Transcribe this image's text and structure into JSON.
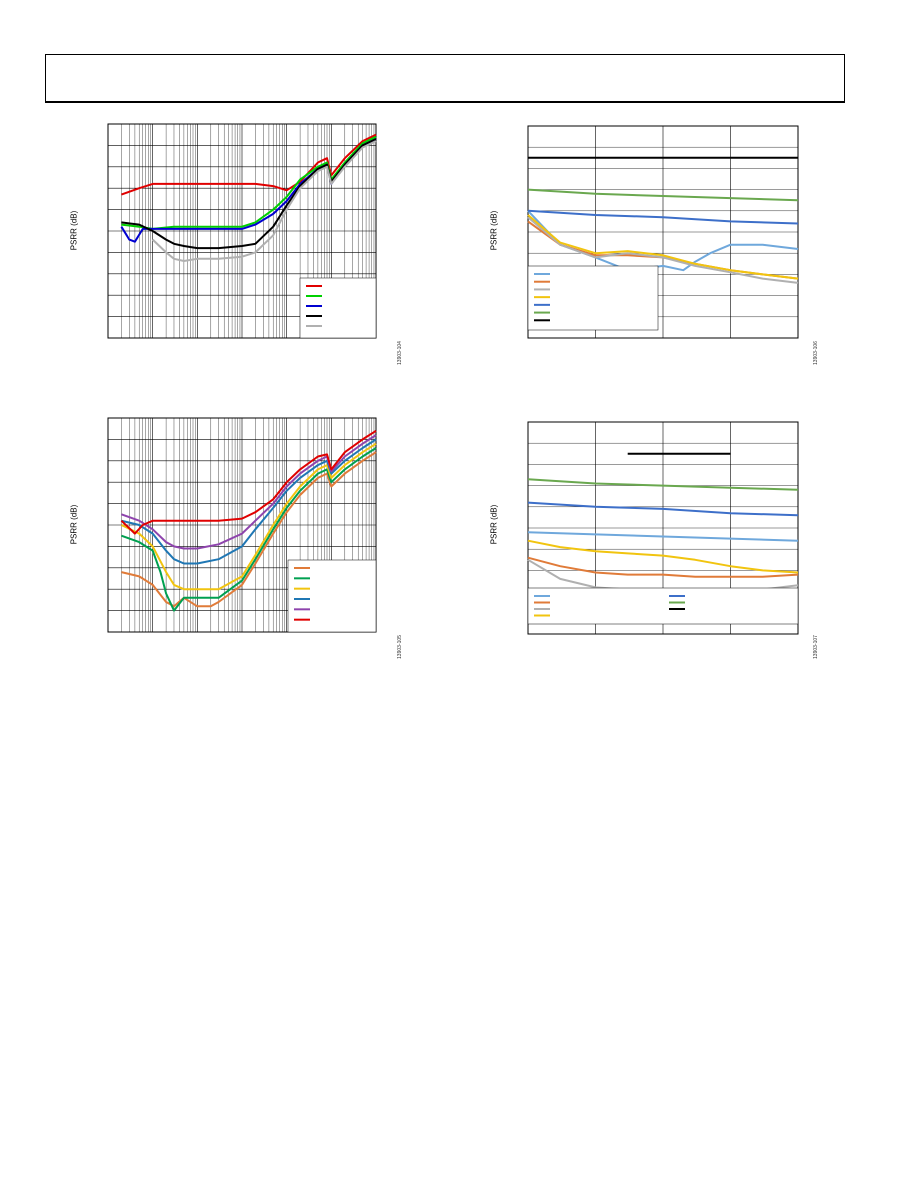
{
  "page": {
    "header_title": ""
  },
  "chart_data": [
    {
      "type": "line",
      "id": "fig1",
      "ylabel": "PSRR (dB)",
      "figure_number": "13903-104",
      "xscale": "log",
      "xlim": [
        10,
        10000000
      ],
      "ylim": [
        0,
        100
      ],
      "grid": true,
      "legend_position": "bottom-right",
      "series": [
        {
          "color": "#e00000",
          "x": [
            20,
            50,
            100,
            300,
            1000,
            3000,
            10000,
            20000,
            50000,
            100000,
            200000,
            500000,
            800000,
            1000000,
            2000000,
            5000000,
            10000000
          ],
          "y": [
            67,
            70,
            72,
            72,
            72,
            72,
            72,
            72,
            71,
            69,
            73,
            82,
            84,
            76,
            84,
            92,
            95
          ]
        },
        {
          "color": "#00d000",
          "x": [
            20,
            50,
            100,
            300,
            1000,
            3000,
            10000,
            20000,
            50000,
            100000,
            200000,
            500000,
            800000,
            1000000,
            2000000,
            5000000,
            10000000
          ],
          "y": [
            53,
            52,
            51,
            52,
            52,
            52,
            52,
            54,
            60,
            66,
            74,
            80,
            82,
            74,
            82,
            91,
            94
          ]
        },
        {
          "color": "#0000d0",
          "x": [
            20,
            30,
            40,
            60,
            100,
            300,
            1000,
            3000,
            10000,
            20000,
            50000,
            100000,
            200000,
            500000,
            800000,
            1000000,
            2000000,
            5000000,
            10000000
          ],
          "y": [
            52,
            46,
            45,
            51,
            51,
            51,
            51,
            51,
            51,
            53,
            58,
            64,
            72,
            79,
            81,
            72,
            81,
            90,
            93
          ]
        },
        {
          "color": "#000000",
          "x": [
            20,
            50,
            100,
            200,
            300,
            500,
            1000,
            3000,
            10000,
            20000,
            50000,
            100000,
            200000,
            500000,
            800000,
            1000000,
            2000000,
            5000000,
            10000000
          ],
          "y": [
            54,
            53,
            50,
            46,
            44,
            43,
            42,
            42,
            43,
            44,
            52,
            62,
            71,
            79,
            81,
            73,
            81,
            90,
            93
          ]
        },
        {
          "color": "#b0b0b0",
          "x": [
            100,
            200,
            300,
            500,
            1000,
            3000,
            10000,
            20000,
            50000,
            100000,
            200000,
            500000,
            800000,
            1000000,
            2000000,
            5000000,
            10000000
          ],
          "y": [
            46,
            40,
            37,
            36,
            37,
            37,
            38,
            40,
            48,
            60,
            70,
            78,
            80,
            72,
            80,
            89,
            92
          ]
        }
      ],
      "legend_count": 5
    },
    {
      "type": "line",
      "id": "fig2",
      "ylabel": "PSRR (dB)",
      "figure_number": "13903-106",
      "xscale": "log",
      "xlim": [
        10,
        100000
      ],
      "ylim": [
        0,
        100
      ],
      "grid": true,
      "legend_position": "bottom-left",
      "series": [
        {
          "color": "#6fa8dc",
          "x": [
            10,
            30,
            100,
            300,
            1000,
            2000,
            3000,
            5000,
            10000,
            30000,
            100000
          ],
          "y": [
            60,
            44,
            38,
            32,
            34,
            32,
            36,
            40,
            44,
            44,
            42
          ]
        },
        {
          "color": "#e07b39",
          "x": [
            10,
            30,
            100,
            300,
            1000,
            3000,
            10000,
            30000,
            100000
          ],
          "y": [
            55,
            44,
            39,
            39,
            38,
            35,
            32,
            30,
            28
          ]
        },
        {
          "color": "#b0b0b0",
          "x": [
            10,
            30,
            100,
            300,
            1000,
            3000,
            10000,
            30000,
            100000
          ],
          "y": [
            57,
            44,
            38,
            40,
            38,
            34,
            31,
            28,
            26
          ]
        },
        {
          "color": "#f1c40f",
          "x": [
            10,
            30,
            100,
            300,
            1000,
            3000,
            10000,
            30000,
            100000
          ],
          "y": [
            58,
            45,
            40,
            41,
            39,
            35,
            32,
            30,
            28
          ]
        },
        {
          "color": "#3d6fc9",
          "x": [
            10,
            100,
            1000,
            10000,
            100000
          ],
          "y": [
            60,
            58,
            57,
            55,
            54
          ]
        },
        {
          "color": "#6aa84f",
          "x": [
            10,
            100,
            1000,
            10000,
            100000
          ],
          "y": [
            70,
            68,
            67,
            66,
            65
          ]
        },
        {
          "color": "#000000",
          "x": [
            10,
            100,
            1000,
            10000,
            100000
          ],
          "y": [
            85,
            85,
            85,
            85,
            85
          ]
        }
      ],
      "legend_count": 7
    },
    {
      "type": "line",
      "id": "fig3",
      "ylabel": "PSRR (dB)",
      "figure_number": "13903-105",
      "xscale": "log",
      "xlim": [
        10,
        10000000
      ],
      "ylim": [
        0,
        100
      ],
      "grid": true,
      "legend_position": "bottom-right",
      "series": [
        {
          "color": "#e07b39",
          "x": [
            20,
            50,
            100,
            200,
            300,
            500,
            1000,
            2000,
            3000,
            10000,
            20000,
            50000,
            100000,
            200000,
            500000,
            800000,
            1000000,
            2000000,
            5000000,
            10000000
          ],
          "y": [
            28,
            26,
            22,
            14,
            12,
            16,
            12,
            12,
            14,
            22,
            32,
            46,
            56,
            64,
            72,
            74,
            68,
            74,
            80,
            84
          ]
        },
        {
          "color": "#00a050",
          "x": [
            20,
            50,
            100,
            150,
            200,
            300,
            500,
            1000,
            3000,
            10000,
            20000,
            50000,
            100000,
            200000,
            500000,
            800000,
            1000000,
            2000000,
            5000000,
            10000000
          ],
          "y": [
            45,
            42,
            38,
            28,
            18,
            10,
            16,
            16,
            16,
            24,
            34,
            48,
            58,
            66,
            74,
            76,
            70,
            76,
            82,
            86
          ]
        },
        {
          "color": "#f1c40f",
          "x": [
            20,
            50,
            100,
            200,
            300,
            500,
            1000,
            3000,
            10000,
            20000,
            50000,
            100000,
            200000,
            500000,
            800000,
            1000000,
            2000000,
            5000000,
            10000000
          ],
          "y": [
            50,
            46,
            40,
            28,
            22,
            20,
            20,
            20,
            26,
            36,
            50,
            60,
            68,
            76,
            78,
            72,
            78,
            84,
            88
          ]
        },
        {
          "color": "#1f77b4",
          "x": [
            20,
            50,
            100,
            200,
            300,
            500,
            1000,
            3000,
            10000,
            20000,
            50000,
            100000,
            200000,
            500000,
            800000,
            1000000,
            2000000,
            5000000,
            10000000
          ],
          "y": [
            52,
            50,
            46,
            38,
            34,
            32,
            32,
            34,
            40,
            48,
            58,
            66,
            72,
            78,
            80,
            74,
            80,
            86,
            90
          ]
        },
        {
          "color": "#8e44ad",
          "x": [
            20,
            50,
            100,
            200,
            300,
            500,
            1000,
            3000,
            10000,
            20000,
            50000,
            100000,
            200000,
            500000,
            800000,
            1000000,
            2000000,
            5000000,
            10000000
          ],
          "y": [
            55,
            52,
            48,
            42,
            40,
            39,
            39,
            41,
            46,
            52,
            60,
            68,
            74,
            80,
            82,
            75,
            82,
            88,
            92
          ]
        },
        {
          "color": "#e00000",
          "x": [
            20,
            40,
            60,
            100,
            300,
            1000,
            3000,
            10000,
            20000,
            50000,
            100000,
            200000,
            500000,
            800000,
            1000000,
            2000000,
            5000000,
            10000000
          ],
          "y": [
            52,
            46,
            50,
            52,
            52,
            52,
            52,
            53,
            56,
            62,
            70,
            76,
            82,
            83,
            76,
            84,
            90,
            94
          ]
        }
      ],
      "legend_count": 6
    },
    {
      "type": "line",
      "id": "fig4",
      "ylabel": "PSRR (dB)",
      "figure_number": "13903-107",
      "xscale": "log",
      "xlim": [
        10,
        100000
      ],
      "ylim": [
        0,
        100
      ],
      "grid": true,
      "legend_position": "bottom",
      "series": [
        {
          "color": "#6fa8dc",
          "x": [
            10,
            100,
            1000,
            10000,
            100000
          ],
          "y": [
            48,
            47,
            46,
            45,
            44
          ]
        },
        {
          "color": "#e07b39",
          "x": [
            10,
            30,
            100,
            300,
            1000,
            3000,
            10000,
            30000,
            100000
          ],
          "y": [
            36,
            32,
            29,
            28,
            28,
            27,
            27,
            27,
            28
          ]
        },
        {
          "color": "#b0b0b0",
          "x": [
            10,
            30,
            100,
            300,
            1000,
            3000,
            10000,
            30000,
            100000
          ],
          "y": [
            35,
            26,
            22,
            21,
            21,
            21,
            20,
            21,
            23
          ]
        },
        {
          "color": "#f1c40f",
          "x": [
            10,
            30,
            100,
            300,
            1000,
            3000,
            10000,
            30000,
            100000
          ],
          "y": [
            44,
            41,
            39,
            38,
            37,
            35,
            32,
            30,
            29
          ]
        },
        {
          "color": "#3d6fc9",
          "x": [
            10,
            100,
            1000,
            10000,
            100000
          ],
          "y": [
            62,
            60,
            59,
            57,
            56
          ]
        },
        {
          "color": "#6aa84f",
          "x": [
            10,
            100,
            1000,
            10000,
            100000
          ],
          "y": [
            73,
            71,
            70,
            69,
            68
          ]
        },
        {
          "color": "#000000",
          "x": [
            300,
            1000,
            10000
          ],
          "y": [
            85,
            85,
            85
          ]
        }
      ],
      "legend_count": 7
    }
  ]
}
